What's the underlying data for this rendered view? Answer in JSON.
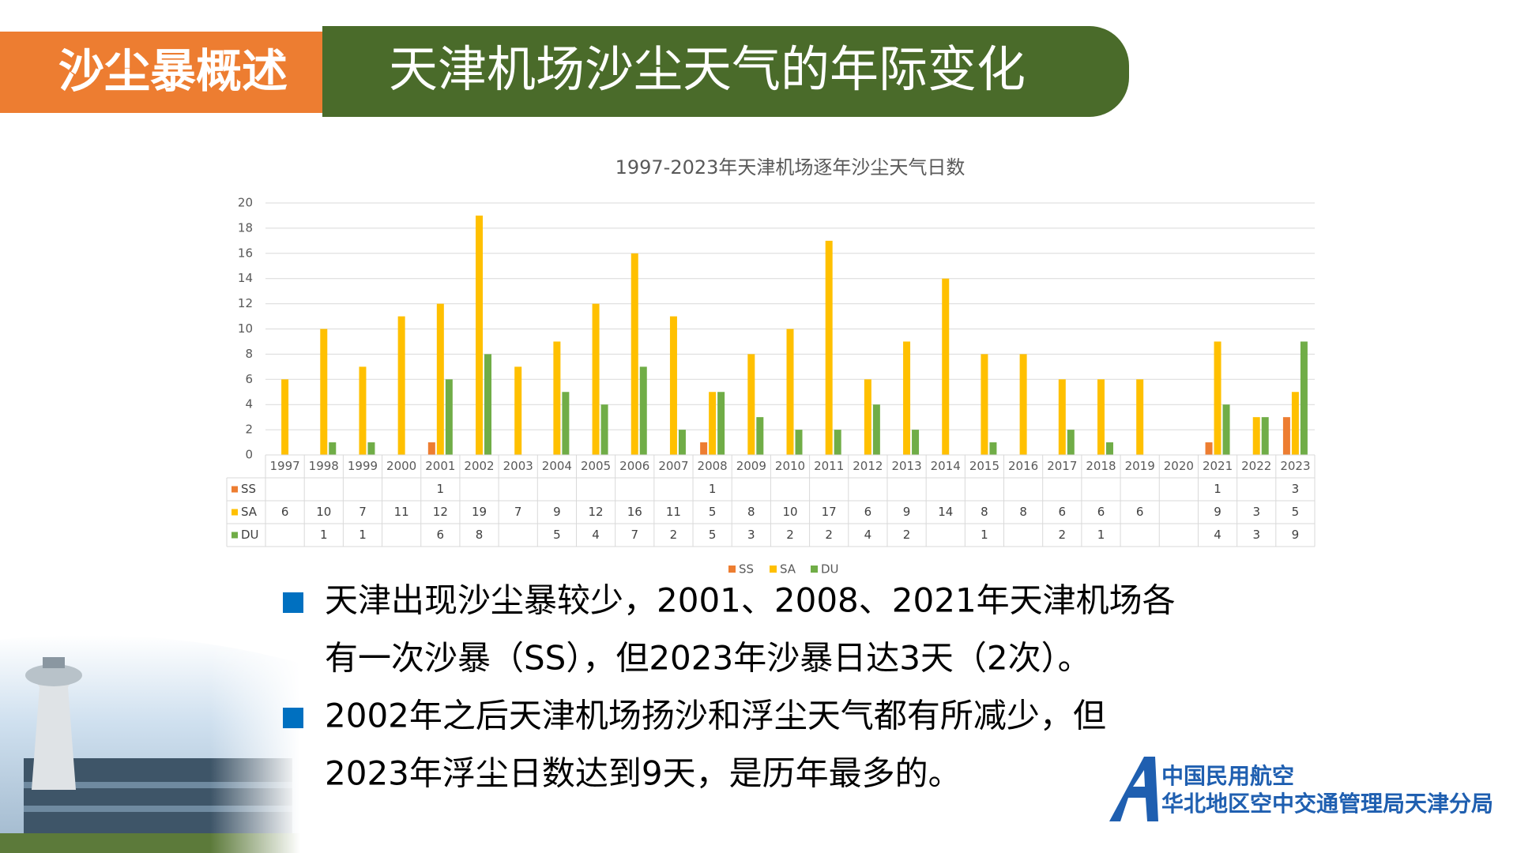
{
  "header": {
    "section": "沙尘暴概述",
    "title": "天津机场沙尘天气的年际变化"
  },
  "chart_data": {
    "type": "bar",
    "title": "1997-2023年天津机场逐年沙尘天气日数",
    "categories": [
      "1997",
      "1998",
      "1999",
      "2000",
      "2001",
      "2002",
      "2003",
      "2004",
      "2005",
      "2006",
      "2007",
      "2008",
      "2009",
      "2010",
      "2011",
      "2012",
      "2013",
      "2014",
      "2015",
      "2016",
      "2017",
      "2018",
      "2019",
      "2020",
      "2021",
      "2022",
      "2023"
    ],
    "series": [
      {
        "name": "SS",
        "color": "#ed7d31",
        "values": [
          null,
          null,
          null,
          null,
          1,
          null,
          null,
          null,
          null,
          null,
          null,
          1,
          null,
          null,
          null,
          null,
          null,
          null,
          null,
          null,
          null,
          null,
          null,
          null,
          1,
          null,
          3
        ]
      },
      {
        "name": "SA",
        "color": "#ffc000",
        "values": [
          6,
          10,
          7,
          11,
          12,
          19,
          7,
          9,
          12,
          16,
          11,
          5,
          8,
          10,
          17,
          6,
          9,
          14,
          8,
          8,
          6,
          6,
          6,
          null,
          9,
          3,
          5
        ]
      },
      {
        "name": "DU",
        "color": "#70ad47",
        "values": [
          null,
          1,
          1,
          null,
          6,
          8,
          null,
          5,
          4,
          7,
          2,
          5,
          3,
          2,
          2,
          4,
          2,
          null,
          1,
          null,
          2,
          1,
          null,
          null,
          4,
          3,
          9
        ]
      }
    ],
    "ylim": [
      0,
      20
    ],
    "yticks": [
      0,
      2,
      4,
      6,
      8,
      10,
      12,
      14,
      16,
      18,
      20
    ],
    "grid": true,
    "data_table": true,
    "legend": "bottom"
  },
  "bullets": [
    [
      "天津出现沙尘暴较少，2001、2008、2021年天津机场各",
      "有一次沙暴（SS），但2023年沙暴日达3天（2次）。"
    ],
    [
      "2002年之后天津机场扬沙和浮尘天气都有所减少，但",
      "2023年浮尘日数达到9天，是历年最多的。"
    ]
  ],
  "logo": {
    "line1": "中国民用航空",
    "line2": "华北地区空中交通管理局天津分局"
  }
}
